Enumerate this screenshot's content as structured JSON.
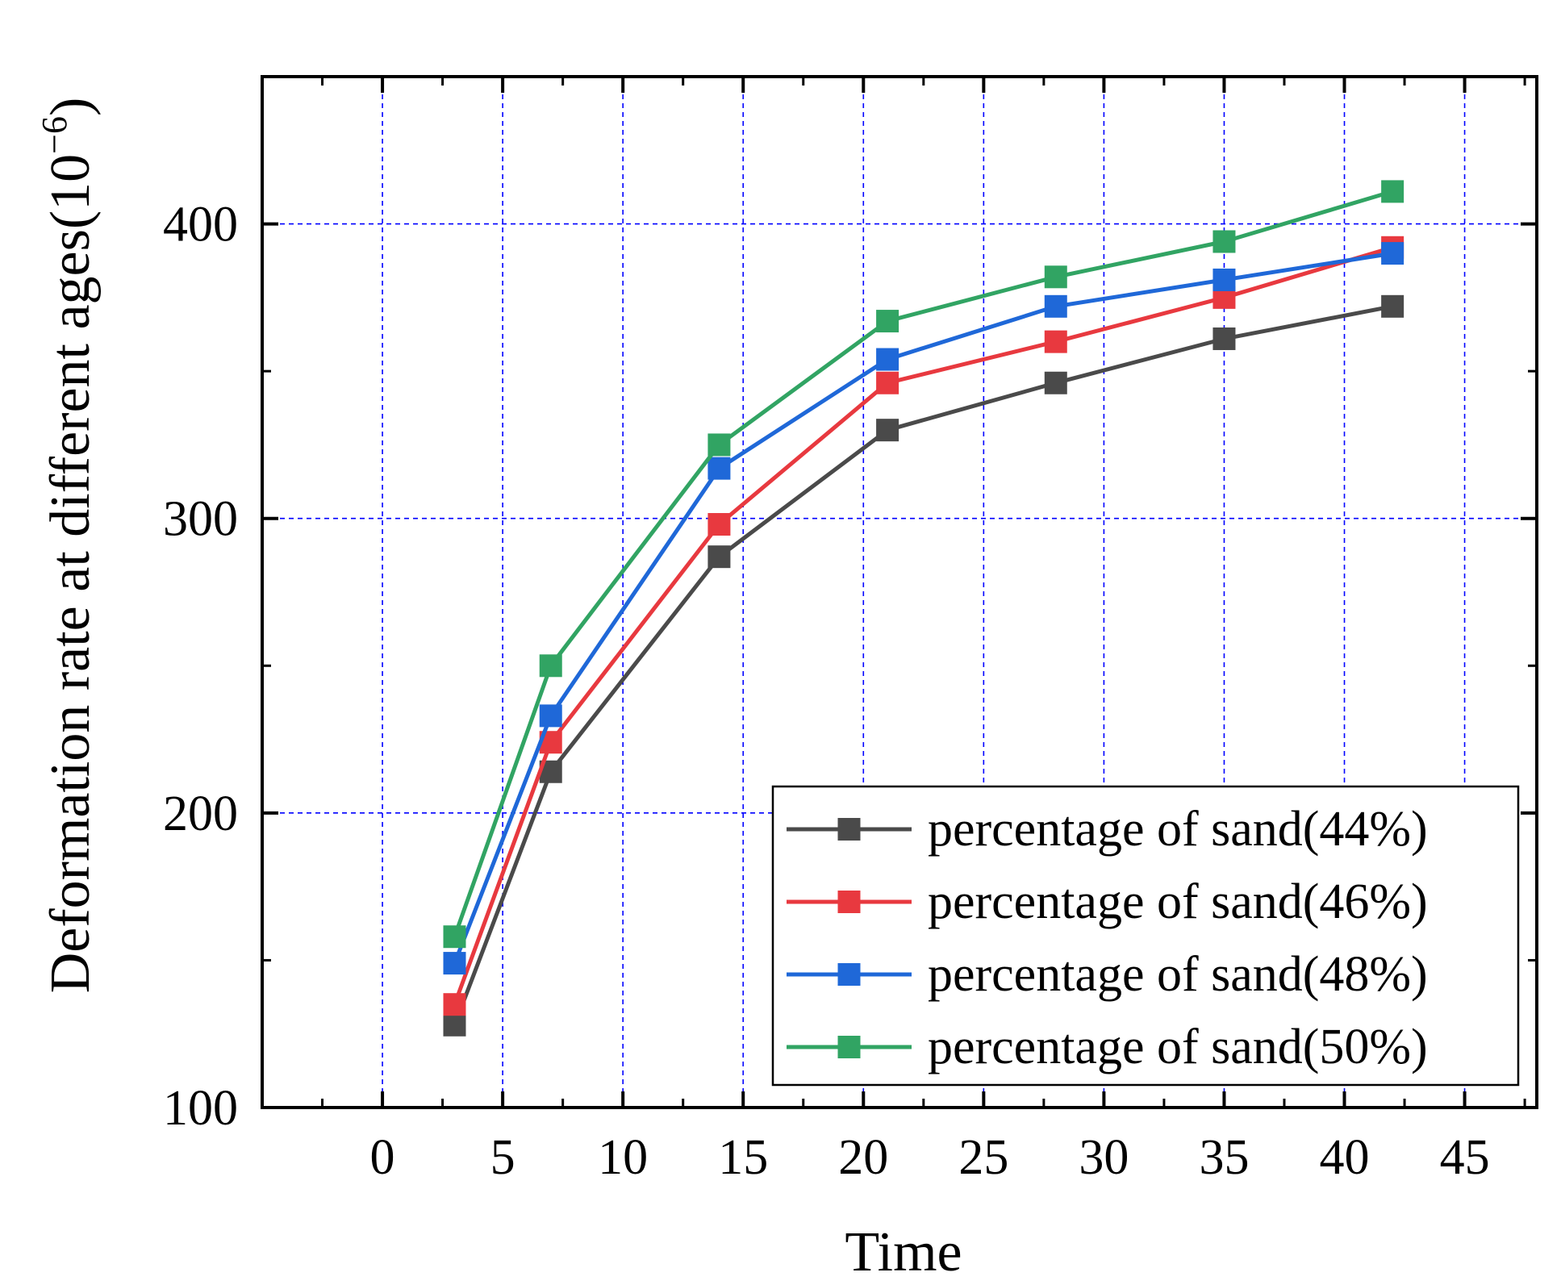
{
  "chart_data": {
    "type": "line",
    "title": "",
    "xlabel": "Time",
    "ylabel": "Deformation rate at different ages(10",
    "ylabel_exponent": "−6",
    "ylabel_close": ")",
    "xlim": [
      -5,
      48
    ],
    "ylim": [
      100,
      450
    ],
    "x_ticks": [
      0,
      5,
      10,
      15,
      20,
      25,
      30,
      35,
      40,
      45
    ],
    "y_ticks": [
      100,
      200,
      300,
      400
    ],
    "x_tick_labels": [
      "0",
      "5",
      "10",
      "15",
      "20",
      "25",
      "30",
      "35",
      "40",
      "45"
    ],
    "y_tick_labels": [
      "100",
      "200",
      "300",
      "400"
    ],
    "grid": true,
    "grid_color": "#0000ff",
    "legend_position": "bottom-right",
    "x": [
      3,
      7,
      14,
      21,
      28,
      35,
      42
    ],
    "series": [
      {
        "name": "percentage of sand(44%)",
        "color": "#4a4a4a",
        "values": [
          128,
          214,
          287,
          330,
          346,
          361,
          372
        ]
      },
      {
        "name": "percentage of sand(46%)",
        "color": "#e8393f",
        "values": [
          135,
          224,
          298,
          346,
          360,
          375,
          392
        ]
      },
      {
        "name": "percentage of sand(48%)",
        "color": "#1f68d8",
        "values": [
          149,
          233,
          317,
          354,
          372,
          381,
          390
        ]
      },
      {
        "name": "percentage of sand(50%)",
        "color": "#31a463",
        "values": [
          158,
          250,
          325,
          367,
          382,
          394,
          411
        ]
      }
    ]
  }
}
